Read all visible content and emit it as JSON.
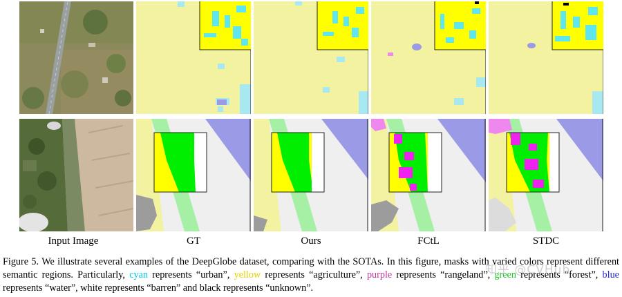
{
  "columns": {
    "input": "Input Image",
    "gt": "GT",
    "ours": "Ours",
    "fctl": "FCtL",
    "stdc": "STDC"
  },
  "caption": {
    "p1": "Figure 5. We illustrate several examples of the DeepGlobe dataset, comparing with the SOTAs. In this figure, masks with varied colors represent different semantic regions. Particularly, ",
    "cyan": "cyan",
    "p2": " represents “urban”, ",
    "yellow": "yellow",
    "p3": " represents “agriculture”, ",
    "purple": "purple",
    "p4": " represents “rangeland”, ",
    "green": "green",
    "p5": " represents “forest”, ",
    "blue": "blue",
    "p6": " represents “water”, white represents “barren” and black represents “unknown”."
  },
  "watermark": "知乎 @CVHub",
  "colors": {
    "urban": "#5ee6f0",
    "agriculture": "#ffff00",
    "rangeland": "#ee44ee",
    "forest": "#00ee00",
    "water": "#9a9ae6",
    "barren": "#ffffff",
    "unknown": "#000000"
  }
}
